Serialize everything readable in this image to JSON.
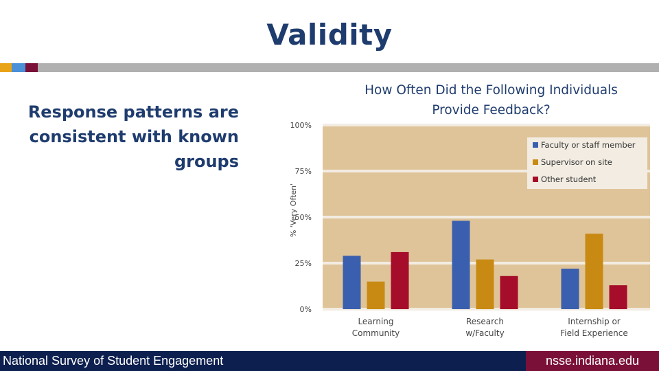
{
  "slide": {
    "title": "Validity",
    "subtitle_lines": [
      "Response patterns are",
      "consistent with known",
      "groups"
    ],
    "accent_colors": [
      "#e8a317",
      "#4a90d9",
      "#1e73be",
      "#7a1038",
      "#b0b0b0"
    ]
  },
  "chart_data": {
    "type": "bar",
    "title_lines": [
      "How Often Did the Following Individuals",
      "Provide Feedback?"
    ],
    "ylabel": "% 'Very Often'",
    "ylim": [
      0,
      100
    ],
    "yticks": [
      0,
      25,
      50,
      75,
      100
    ],
    "ytick_labels": [
      "0%",
      "25%",
      "50%",
      "75%",
      "100%"
    ],
    "categories": [
      [
        "Learning",
        "Community"
      ],
      [
        "Research",
        "w/Faculty"
      ],
      [
        "Internship or",
        "Field Experience"
      ]
    ],
    "series": [
      {
        "name": "Faculty or staff member",
        "color": "#3a5fae",
        "values": [
          29,
          48,
          22
        ]
      },
      {
        "name": "Supervisor on site",
        "color": "#c88a12",
        "values": [
          15,
          27,
          41
        ]
      },
      {
        "name": "Other student",
        "color": "#a50d2a",
        "values": [
          31,
          18,
          13
        ]
      }
    ],
    "legend": "top-right",
    "grid": true,
    "plot_background": "#dfc499"
  },
  "footer": {
    "left_text": "National Survey of Student Engagement",
    "right_text": "nsse.indiana.edu",
    "left_color": "#0d1f4f",
    "right_color": "#7a1038"
  }
}
